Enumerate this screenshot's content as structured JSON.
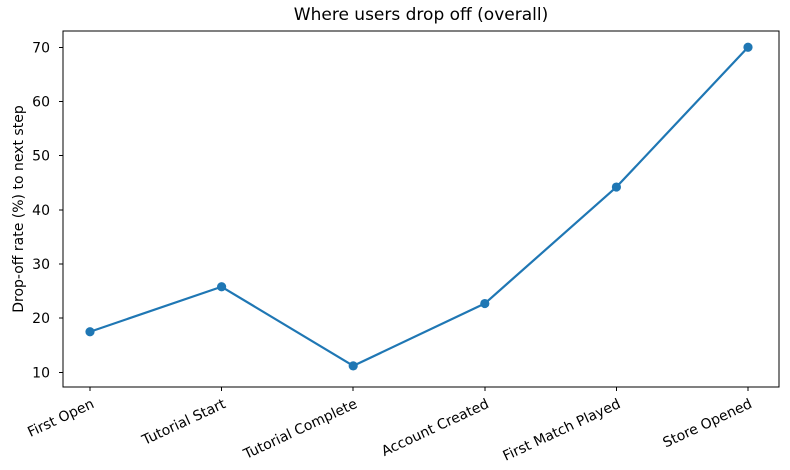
{
  "chart_data": {
    "type": "line",
    "title": "Where users drop off (overall)",
    "xlabel": "",
    "ylabel": "Drop-off rate (%) to next step",
    "categories": [
      "First Open",
      "Tutorial Start",
      "Tutorial Complete",
      "Account Created",
      "First Match Played",
      "Store Opened"
    ],
    "values": [
      17.5,
      25.8,
      11.2,
      22.7,
      44.2,
      70.0
    ],
    "yticks": [
      10,
      20,
      30,
      40,
      50,
      60,
      70
    ],
    "ylim": [
      7.3,
      73.0
    ],
    "x_tick_rotation_deg": 25,
    "grid": false,
    "legend": "none",
    "line_color": "#1f77b4",
    "marker": "circle",
    "marker_color": "#1f77b4",
    "axis_color": "#000000",
    "background_color": "#ffffff"
  }
}
